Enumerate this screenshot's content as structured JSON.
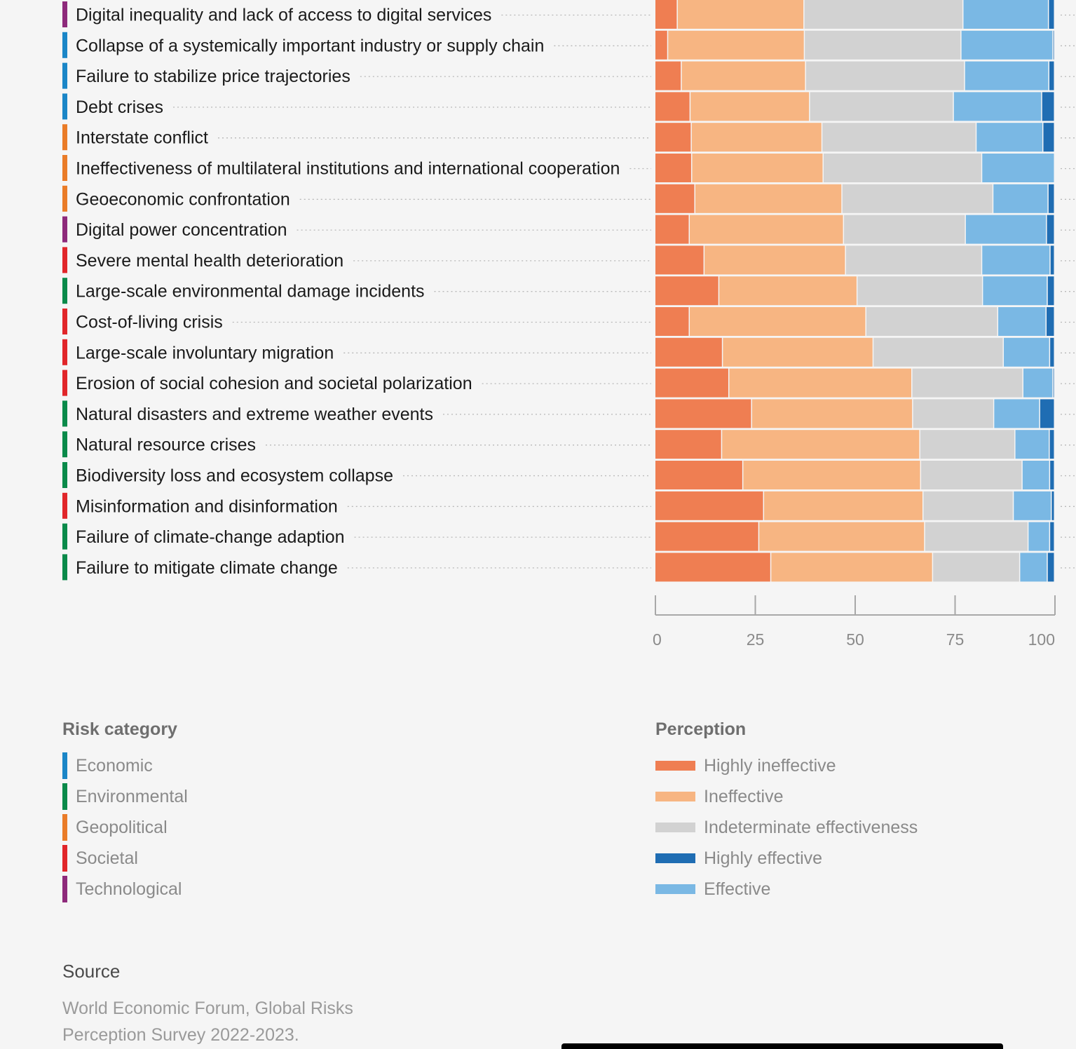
{
  "chart_data": {
    "type": "bar",
    "orientation": "horizontal",
    "stacked": true,
    "categories": [
      {
        "label": "Digital inequality and lack of access to digital services",
        "risk_category": "Technological"
      },
      {
        "label": "Collapse of a systemically important industry or supply chain",
        "risk_category": "Economic"
      },
      {
        "label": "Failure to stabilize price trajectories",
        "risk_category": "Economic"
      },
      {
        "label": "Debt crises",
        "risk_category": "Economic"
      },
      {
        "label": "Interstate conflict",
        "risk_category": "Geopolitical"
      },
      {
        "label": "Ineffectiveness of multilateral institutions and international cooperation",
        "risk_category": "Geopolitical"
      },
      {
        "label": "Geoeconomic confrontation",
        "risk_category": "Geopolitical"
      },
      {
        "label": "Digital power concentration",
        "risk_category": "Technological"
      },
      {
        "label": "Severe mental health deterioration",
        "risk_category": "Societal"
      },
      {
        "label": "Large-scale environmental damage incidents",
        "risk_category": "Environmental"
      },
      {
        "label": "Cost-of-living crisis",
        "risk_category": "Societal"
      },
      {
        "label": "Large-scale involuntary migration",
        "risk_category": "Societal"
      },
      {
        "label": "Erosion of social cohesion and societal polarization",
        "risk_category": "Societal"
      },
      {
        "label": "Natural disasters and extreme weather events",
        "risk_category": "Environmental"
      },
      {
        "label": "Natural resource crises",
        "risk_category": "Environmental"
      },
      {
        "label": "Biodiversity loss and ecosystem collapse",
        "risk_category": "Environmental"
      },
      {
        "label": "Misinformation and disinformation",
        "risk_category": "Societal"
      },
      {
        "label": "Failure of climate-change adaption",
        "risk_category": "Environmental"
      },
      {
        "label": "Failure to mitigate climate change",
        "risk_category": "Environmental"
      }
    ],
    "series": [
      {
        "name": "Highly ineffective",
        "color": "#ef7e52",
        "values": [
          5.6,
          3.2,
          6.6,
          8.8,
          9.1,
          9.2,
          10.0,
          8.6,
          12.3,
          16.0,
          8.6,
          16.9,
          18.5,
          24.2,
          16.7,
          22.0,
          27.2,
          26.0,
          29.0
        ]
      },
      {
        "name": "Ineffective",
        "color": "#f7b582",
        "values": [
          31.7,
          34.2,
          31.1,
          29.9,
          32.7,
          32.9,
          36.8,
          38.6,
          35.4,
          34.6,
          44.2,
          37.7,
          45.8,
          40.3,
          49.6,
          44.5,
          39.9,
          41.5,
          40.5
        ]
      },
      {
        "name": "Indeterminate effectiveness",
        "color": "#d2d2d2",
        "values": [
          39.8,
          39.2,
          39.8,
          36.0,
          38.6,
          39.7,
          37.8,
          30.5,
          34.1,
          31.4,
          33.0,
          32.6,
          27.8,
          20.3,
          23.8,
          25.4,
          22.6,
          25.9,
          21.8
        ]
      },
      {
        "name": "Effective",
        "color": "#7ab8e4",
        "values": [
          21.4,
          23.0,
          21.1,
          22.1,
          16.7,
          18.2,
          13.8,
          20.3,
          17.1,
          16.2,
          12.1,
          11.6,
          7.5,
          11.5,
          8.6,
          6.9,
          9.5,
          5.4,
          6.9
        ]
      },
      {
        "name": "Highly effective",
        "color": "#1f6db3",
        "values": [
          1.5,
          0.4,
          1.4,
          3.2,
          2.9,
          0.0,
          1.6,
          2.0,
          1.1,
          1.8,
          2.1,
          1.2,
          0.4,
          3.7,
          1.3,
          1.2,
          0.8,
          1.2,
          1.8
        ]
      }
    ],
    "x_ticks": [
      "0",
      "25",
      "50",
      "75",
      "100"
    ],
    "xlim": [
      0,
      100
    ],
    "grid": false,
    "legend_placement": "bottom"
  },
  "legend": {
    "risk_category_title": "Risk category",
    "risk_categories": [
      {
        "name": "Economic",
        "color": "#1b86c7"
      },
      {
        "name": "Environmental",
        "color": "#0a8a4a"
      },
      {
        "name": "Geopolitical",
        "color": "#ea7c28"
      },
      {
        "name": "Societal",
        "color": "#e1262a"
      },
      {
        "name": "Technological",
        "color": "#8e2a7b"
      }
    ],
    "perception_title": "Perception",
    "perception": [
      {
        "name": "Highly ineffective",
        "color": "#ef7e52"
      },
      {
        "name": "Ineffective",
        "color": "#f7b582"
      },
      {
        "name": "Indeterminate effectiveness",
        "color": "#d2d2d2"
      },
      {
        "name": "Highly effective",
        "color": "#1f6db3"
      },
      {
        "name": "Effective",
        "color": "#7ab8e4"
      }
    ]
  },
  "source": {
    "title": "Source",
    "text": "World Economic Forum, Global Risks Perception Survey 2022-2023."
  }
}
